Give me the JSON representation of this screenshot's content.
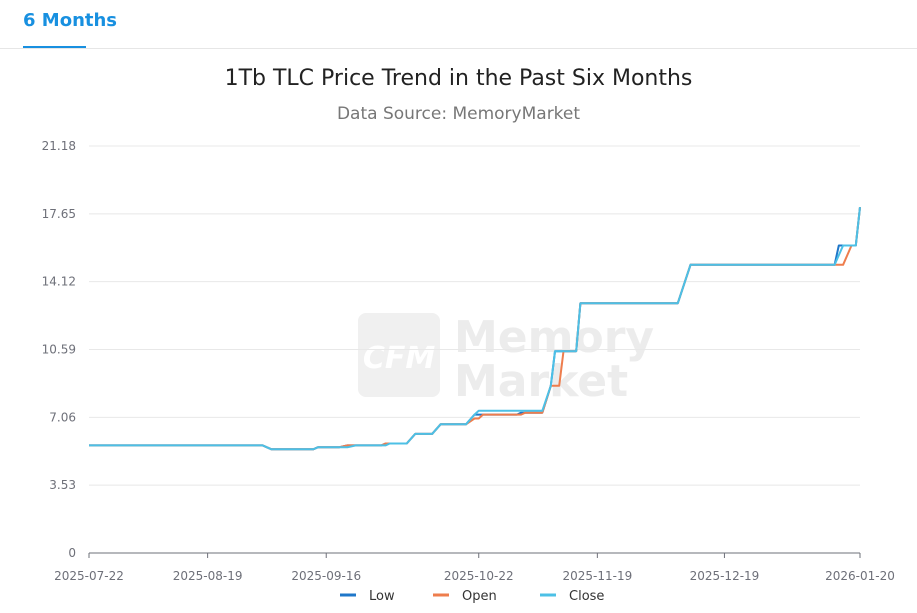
{
  "tabs": [
    {
      "label": "6 Months",
      "active": true
    }
  ],
  "colors": {
    "low": "#1f77c9",
    "open": "#ee7d4d",
    "close": "#4cc0e6",
    "accent": "#1890e0"
  },
  "watermark": {
    "logo": "CFM",
    "line1": "Memory",
    "line2": "Market"
  },
  "chart_data": {
    "type": "line",
    "title": "1Tb TLC Price Trend in the Past Six Months",
    "subtitle": "Data Source: MemoryMarket",
    "xlabel": "",
    "ylabel": "",
    "x_ticks": [
      "2025-07-22",
      "2025-08-19",
      "2025-09-16",
      "2025-10-22",
      "2025-11-19",
      "2025-12-19",
      "2026-01-20"
    ],
    "y_ticks": [
      "0",
      "3.53",
      "7.06",
      "10.59",
      "14.12",
      "17.65",
      "21.18"
    ],
    "ylim": [
      0,
      21.18
    ],
    "xlim": [
      "2025-07-22",
      "2026-01-20"
    ],
    "grid": true,
    "legend_position": "bottom-center",
    "series": [
      {
        "name": "Low",
        "points": [
          [
            "2025-07-22",
            5.6
          ],
          [
            "2025-09-01",
            5.6
          ],
          [
            "2025-09-03",
            5.4
          ],
          [
            "2025-09-13",
            5.4
          ],
          [
            "2025-09-14",
            5.5
          ],
          [
            "2025-09-19",
            5.5
          ],
          [
            "2025-09-21",
            5.6
          ],
          [
            "2025-09-29",
            5.6
          ],
          [
            "2025-09-30",
            5.7
          ],
          [
            "2025-10-05",
            5.7
          ],
          [
            "2025-10-07",
            6.2
          ],
          [
            "2025-10-11",
            6.2
          ],
          [
            "2025-10-13",
            6.7
          ],
          [
            "2025-10-19",
            6.7
          ],
          [
            "2025-10-21",
            7.2
          ],
          [
            "2025-10-31",
            7.2
          ],
          [
            "2025-11-01",
            7.3
          ],
          [
            "2025-11-06",
            7.3
          ],
          [
            "2025-11-08",
            8.7
          ],
          [
            "2025-11-09",
            10.5
          ],
          [
            "2025-11-14",
            10.5
          ],
          [
            "2025-11-15",
            13.0
          ],
          [
            "2025-12-08",
            13.0
          ],
          [
            "2025-12-11",
            15.0
          ],
          [
            "2026-01-14",
            15.0
          ],
          [
            "2026-01-15",
            16.0
          ],
          [
            "2026-01-19",
            16.0
          ],
          [
            "2026-01-20",
            18.0
          ]
        ]
      },
      {
        "name": "Open",
        "points": [
          [
            "2025-07-22",
            5.6
          ],
          [
            "2025-09-01",
            5.6
          ],
          [
            "2025-09-03",
            5.4
          ],
          [
            "2025-09-13",
            5.4
          ],
          [
            "2025-09-14",
            5.5
          ],
          [
            "2025-09-19",
            5.5
          ],
          [
            "2025-09-21",
            5.6
          ],
          [
            "2025-09-29",
            5.6
          ],
          [
            "2025-09-30",
            5.7
          ],
          [
            "2025-10-05",
            5.7
          ],
          [
            "2025-10-07",
            6.2
          ],
          [
            "2025-10-11",
            6.2
          ],
          [
            "2025-10-13",
            6.7
          ],
          [
            "2025-10-19",
            6.7
          ],
          [
            "2025-10-21",
            7.0
          ],
          [
            "2025-10-22",
            7.0
          ],
          [
            "2025-10-23",
            7.2
          ],
          [
            "2025-11-01",
            7.2
          ],
          [
            "2025-11-02",
            7.3
          ],
          [
            "2025-11-06",
            7.3
          ],
          [
            "2025-11-08",
            8.7
          ],
          [
            "2025-11-10",
            8.7
          ],
          [
            "2025-11-11",
            10.5
          ],
          [
            "2025-11-14",
            10.5
          ],
          [
            "2025-11-15",
            13.0
          ],
          [
            "2025-12-08",
            13.0
          ],
          [
            "2025-12-11",
            15.0
          ],
          [
            "2026-01-16",
            15.0
          ],
          [
            "2026-01-18",
            16.0
          ],
          [
            "2026-01-19",
            16.0
          ],
          [
            "2026-01-20",
            18.0
          ]
        ]
      },
      {
        "name": "Close",
        "points": [
          [
            "2025-07-22",
            5.6
          ],
          [
            "2025-09-01",
            5.6
          ],
          [
            "2025-09-03",
            5.4
          ],
          [
            "2025-09-13",
            5.4
          ],
          [
            "2025-09-14",
            5.5
          ],
          [
            "2025-09-21",
            5.5
          ],
          [
            "2025-09-23",
            5.6
          ],
          [
            "2025-09-30",
            5.6
          ],
          [
            "2025-10-01",
            5.7
          ],
          [
            "2025-10-05",
            5.7
          ],
          [
            "2025-10-07",
            6.2
          ],
          [
            "2025-10-11",
            6.2
          ],
          [
            "2025-10-13",
            6.7
          ],
          [
            "2025-10-19",
            6.7
          ],
          [
            "2025-10-21",
            7.2
          ],
          [
            "2025-10-22",
            7.4
          ],
          [
            "2025-11-06",
            7.4
          ],
          [
            "2025-11-08",
            8.7
          ],
          [
            "2025-11-09",
            10.5
          ],
          [
            "2025-11-14",
            10.5
          ],
          [
            "2025-11-15",
            13.0
          ],
          [
            "2025-12-08",
            13.0
          ],
          [
            "2025-12-11",
            15.0
          ],
          [
            "2026-01-14",
            15.0
          ],
          [
            "2026-01-16",
            16.0
          ],
          [
            "2026-01-19",
            16.0
          ],
          [
            "2026-01-20",
            18.0
          ]
        ]
      }
    ]
  }
}
